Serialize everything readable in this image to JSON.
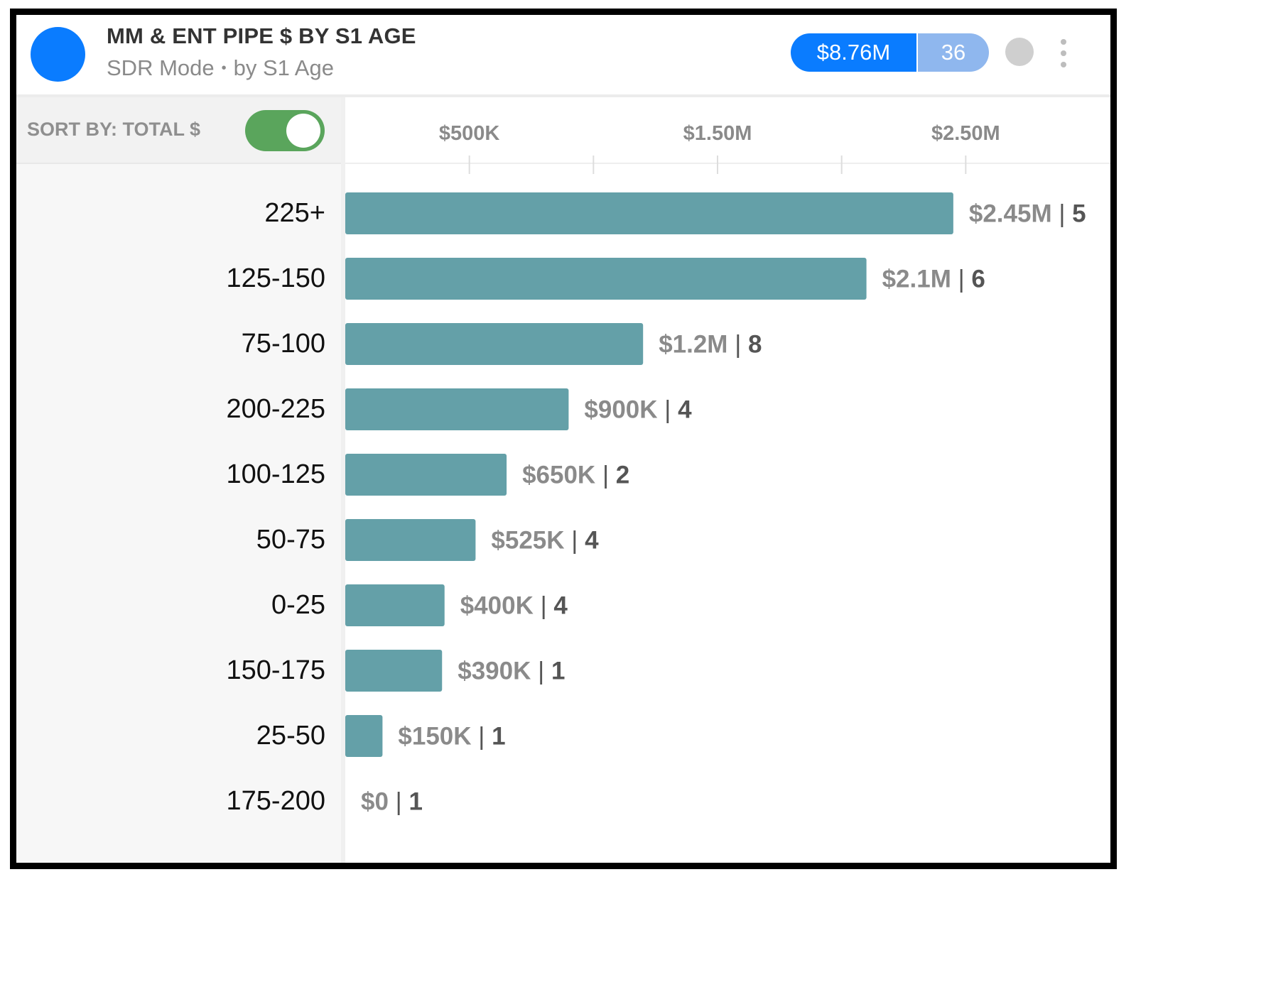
{
  "header": {
    "title": "MM & ENT PIPE $ BY S1 AGE",
    "subtitle_mode": "SDR Mode",
    "subtitle_sep": "•",
    "subtitle_group": "by S1 Age",
    "total": "$8.76M",
    "count": "36"
  },
  "controls": {
    "sort_label": "SORT BY: TOTAL $",
    "sort_toggle_on": true
  },
  "colors": {
    "avatar": "#0a7cff",
    "pill_total": "#0a7cff",
    "pill_count": "#8fb7ee",
    "status_dot": "#cfcfcf",
    "bar": "#64a0a8",
    "toggle_on": "#5aa55c",
    "value_text": "#8a8a8a",
    "count_text": "#555555"
  },
  "icons": {
    "avatar": "avatar-circle",
    "status": "status-dot-icon",
    "menu": "kebab-menu-icon"
  },
  "chart_data": {
    "type": "bar",
    "orientation": "horizontal",
    "x_tick_labels": [
      "$500K",
      "$1.50M",
      "$2.50M"
    ],
    "x_ticks": [
      500000,
      1500000,
      2500000
    ],
    "x_minor_ticks": [
      1000000,
      2000000
    ],
    "xlim": [
      0,
      3000000
    ],
    "grid": false,
    "categories": [
      "225+",
      "125-150",
      "75-100",
      "200-225",
      "100-125",
      "50-75",
      "0-25",
      "150-175",
      "25-50",
      "175-200"
    ],
    "values": [
      2450000,
      2100000,
      1200000,
      900000,
      650000,
      525000,
      400000,
      390000,
      150000,
      0
    ],
    "value_labels": [
      "$2.45M",
      "$2.1M",
      "$1.2M",
      "$900K",
      "$650K",
      "$525K",
      "$400K",
      "$390K",
      "$150K",
      "$0"
    ],
    "counts": [
      5,
      6,
      8,
      4,
      2,
      4,
      4,
      1,
      1,
      1
    ],
    "separator": "|"
  }
}
